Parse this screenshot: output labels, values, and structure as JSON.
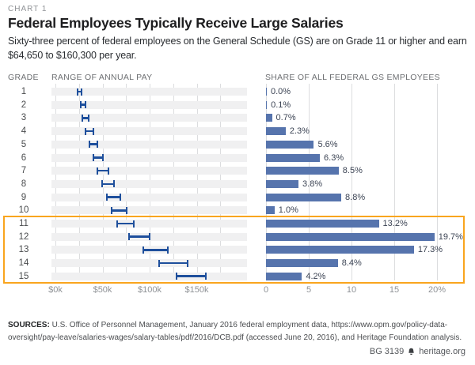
{
  "header": {
    "chart_label": "CHART 1",
    "title": "Federal Employees Typically Receive Large Salaries",
    "subtitle": "Sixty-three percent of federal employees on the General Schedule (GS) are on Grade 11 or higher and earn $64,650 to $160,300 per year."
  },
  "columns": {
    "grade": "GRADE"
  },
  "chart_data": [
    {
      "type": "range",
      "title": "RANGE OF ANNUAL PAY",
      "categories": [
        1,
        2,
        3,
        4,
        5,
        6,
        7,
        8,
        9,
        10,
        11,
        12,
        13,
        14,
        15
      ],
      "pay_ranges_usd": [
        [
          22900,
          28600
        ],
        [
          25700,
          32400
        ],
        [
          28100,
          36500
        ],
        [
          31500,
          41000
        ],
        [
          35300,
          45800
        ],
        [
          39300,
          51100
        ],
        [
          43700,
          56800
        ],
        [
          48400,
          62900
        ],
        [
          53400,
          69500
        ],
        [
          58800,
          76500
        ],
        [
          64650,
          84000
        ],
        [
          77500,
          100700
        ],
        [
          92100,
          119800
        ],
        [
          108900,
          141600
        ],
        [
          128100,
          160300
        ]
      ],
      "x_ticks": [
        {
          "value": 0,
          "label": "$0k"
        },
        {
          "value": 50000,
          "label": "$50k"
        },
        {
          "value": 100000,
          "label": "$100k"
        },
        {
          "value": 150000,
          "label": "$150k"
        }
      ],
      "xlim": [
        0,
        185000
      ],
      "grid_step": 25000,
      "grid_max": 175000
    },
    {
      "type": "bar",
      "title": "SHARE OF ALL FEDERAL GS EMPLOYEES",
      "categories": [
        1,
        2,
        3,
        4,
        5,
        6,
        7,
        8,
        9,
        10,
        11,
        12,
        13,
        14,
        15
      ],
      "values": [
        0.0,
        0.1,
        0.7,
        2.3,
        5.6,
        6.3,
        8.5,
        3.8,
        8.8,
        1.0,
        13.2,
        19.7,
        17.3,
        8.4,
        4.2
      ],
      "labels": [
        "0.0%",
        "0.1%",
        "0.7%",
        "2.3%",
        "5.6%",
        "6.3%",
        "8.5%",
        "3.8%",
        "8.8%",
        "1.0%",
        "13.2%",
        "19.7%",
        "17.3%",
        "8.4%",
        "4.2%"
      ],
      "x_ticks": [
        {
          "value": 0,
          "label": "0"
        },
        {
          "value": 5,
          "label": "5"
        },
        {
          "value": 10,
          "label": "10"
        },
        {
          "value": 15,
          "label": "15"
        },
        {
          "value": 20,
          "label": "20%"
        }
      ],
      "xlim": [
        0,
        20
      ]
    }
  ],
  "highlight": {
    "from_grade": 11,
    "to_grade": 15,
    "color": "#f9a51e"
  },
  "footer": {
    "sources_label": "SOURCES:",
    "sources_text": "U.S. Office of Personnel Management, January 2016 federal employment data, https://www.opm.gov/policy-data-oversight/pay-leave/salaries-wages/salary-tables/pdf/2016/DCB.pdf (accessed June 20, 2016), and Heritage Foundation analysis.",
    "report_id": "BG 3139",
    "site": "heritage.org"
  },
  "colors": {
    "range_bar": "#1e4f9c",
    "share_bar": "#5674ad",
    "highlight": "#f9a51e",
    "band": "#f0f0f1",
    "gridline": "#dcdddf"
  }
}
